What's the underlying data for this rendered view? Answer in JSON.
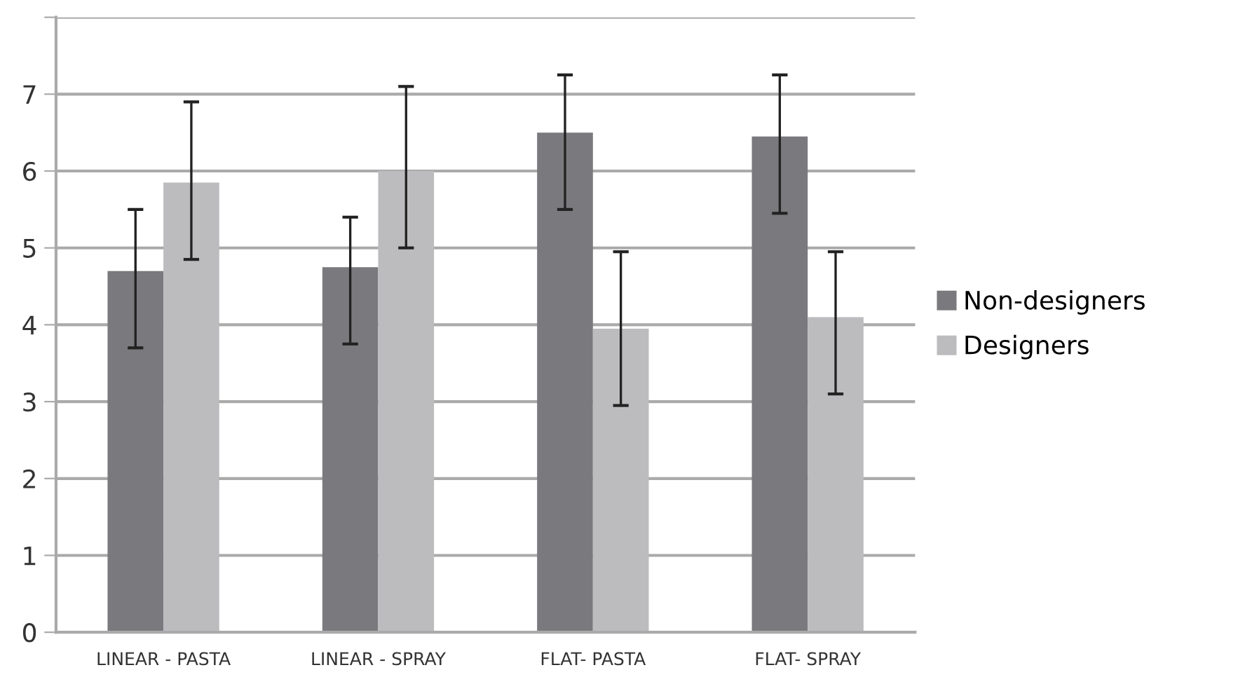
{
  "chart_data": {
    "type": "bar",
    "categories": [
      "LINEAR - PASTA",
      "LINEAR - SPRAY",
      "FLAT- PASTA",
      "FLAT- SPRAY"
    ],
    "series": [
      {
        "name": "Non-designers",
        "color": "#7a7a7e",
        "values": [
          4.7,
          4.75,
          6.5,
          6.45
        ],
        "errors": [
          [
            3.7,
            5.5
          ],
          [
            3.75,
            5.4
          ],
          [
            5.5,
            7.25
          ],
          [
            5.45,
            7.25
          ]
        ]
      },
      {
        "name": "Designers",
        "color": "#bcbcbe",
        "values": [
          5.85,
          6.0,
          3.95,
          4.1
        ],
        "errors": [
          [
            4.85,
            6.9
          ],
          [
            5.0,
            7.1
          ],
          [
            2.95,
            4.95
          ],
          [
            3.1,
            4.95
          ]
        ]
      }
    ],
    "ylim": [
      0,
      8
    ],
    "yticks": [
      0,
      1,
      2,
      3,
      4,
      5,
      6,
      7,
      {
        "value": 8,
        "label": null
      }
    ],
    "grid": "y",
    "legend": "right"
  }
}
